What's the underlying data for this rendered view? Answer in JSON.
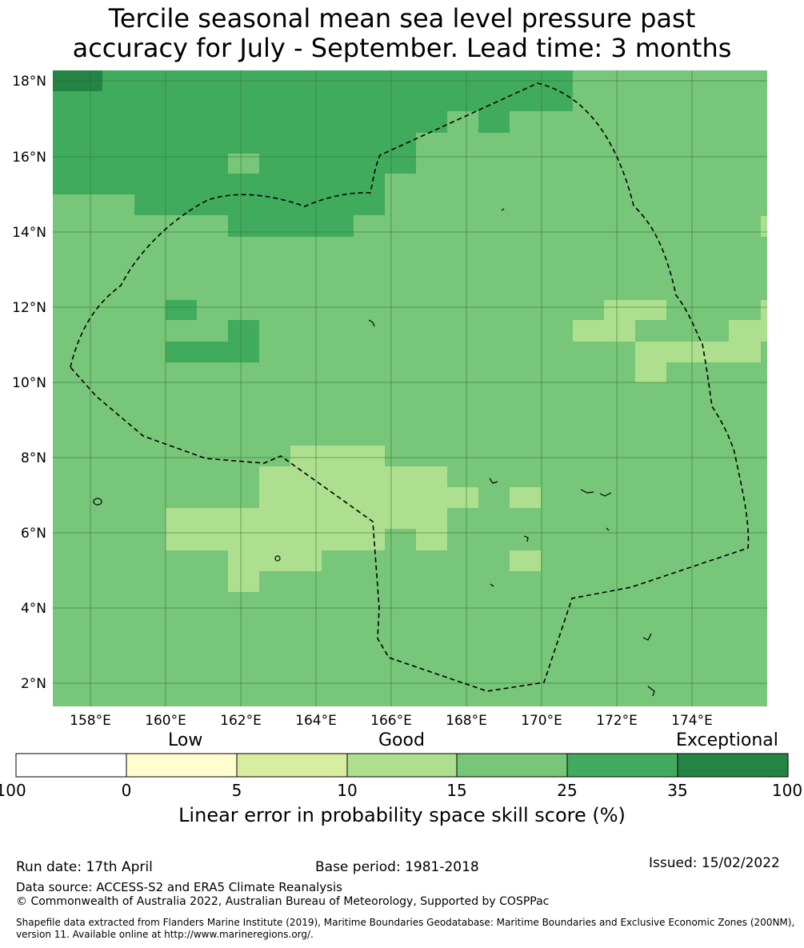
{
  "title": {
    "line1": "Tercile seasonal mean sea level pressure past",
    "line2": "accuracy for July - September. Lead time: 3 months"
  },
  "map": {
    "lon_range": [
      157.0,
      176.0
    ],
    "lat_range": [
      1.4,
      18.3
    ],
    "lon_ticks": [
      "158°E",
      "160°E",
      "162°E",
      "164°E",
      "166°E",
      "168°E",
      "170°E",
      "172°E",
      "174°E"
    ],
    "lat_ticks": [
      "18°N",
      "16°N",
      "14°N",
      "12°N",
      "10°N",
      "8°N",
      "6°N",
      "4°N",
      "2°N"
    ],
    "grid": true,
    "boundary_style": "dashed"
  },
  "colorbar": {
    "category_labels": [
      "Low",
      "Good",
      "Exceptional"
    ],
    "tick_labels": [
      "-100",
      "0",
      "5",
      "10",
      "15",
      "25",
      "35",
      "100"
    ],
    "colors": [
      "#ffffff",
      "#fffdd0",
      "#d9eda0",
      "#addf8e",
      "#78c679",
      "#41ab5d",
      "#238443"
    ],
    "label": "Linear error in probability space skill score (%)"
  },
  "footer": {
    "run_date": "Run date: 17th April",
    "base_period": "Base period: 1981-2018",
    "issued": "Issued: 15/02/2022",
    "data_source": "Data source: ACCESS-S2 and ERA5 Climate Reanalysis",
    "copyright": "© Commonwealth of Australia 2022, Australian Bureau of Meteorology, Supported by COSPPac",
    "shapefile_line1": "Shapefile data extracted from Flanders Marine Institute (2019), Maritime Boundaries Geodatabase: Maritime Boundaries and Exclusive Economic Zones (200NM),",
    "shapefile_line2": "version 11. Available online at http://www.marineregions.org/."
  }
}
